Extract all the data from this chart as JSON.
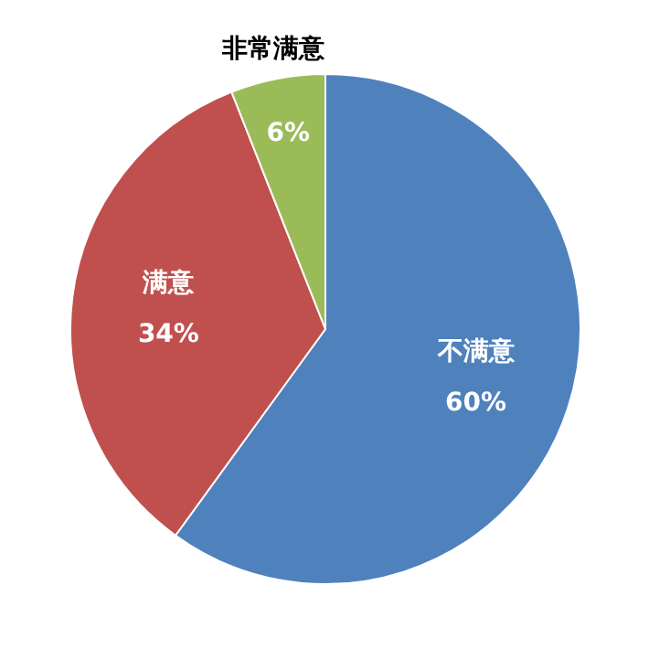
{
  "chart_data": {
    "type": "pie",
    "categories": [
      "不满意",
      "满意",
      "非常满意"
    ],
    "values": [
      60,
      34,
      6
    ],
    "colors": [
      "#4f81bd",
      "#c0504d",
      "#9bbb59"
    ],
    "value_labels": [
      "60%",
      "34%",
      "6%"
    ],
    "legend": false
  }
}
